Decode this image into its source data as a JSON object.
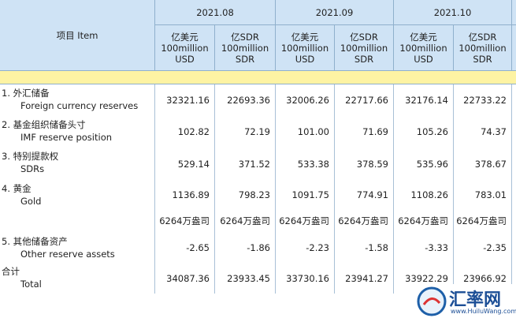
{
  "header": {
    "item": "项目 Item",
    "periods": [
      "2021.08",
      "2021.09",
      "2021.10"
    ],
    "units": [
      {
        "cn": "亿美元",
        "en": "100million",
        "unit": "USD"
      },
      {
        "cn": "亿SDR",
        "en": "100million",
        "unit": "SDR"
      },
      {
        "cn": "亿美元",
        "en": "100million",
        "unit": "USD"
      },
      {
        "cn": "亿SDR",
        "en": "100million",
        "unit": "SDR"
      },
      {
        "cn": "亿美元",
        "en": "100million",
        "unit": "USD"
      },
      {
        "cn": "亿SDR",
        "en": "100million",
        "unit": "SDR"
      }
    ]
  },
  "table": {
    "rows": [
      {
        "cn": "1. 外汇储备",
        "en": "Foreign currency reserves",
        "values": [
          "32321.16",
          "22693.36",
          "32006.26",
          "22717.66",
          "32176.14",
          "22733.22"
        ]
      },
      {
        "cn": "2. 基金组织储备头寸",
        "en": "IMF reserve position",
        "values": [
          "102.82",
          "72.19",
          "101.00",
          "71.69",
          "105.26",
          "74.37"
        ]
      },
      {
        "cn": "3. 特别提款权",
        "en": "SDRs",
        "values": [
          "529.14",
          "371.52",
          "533.38",
          "378.59",
          "535.96",
          "378.67"
        ]
      },
      {
        "cn": "4. 黄金",
        "en": "Gold",
        "values": [
          "1136.89",
          "798.23",
          "1091.75",
          "774.91",
          "1108.26",
          "783.01"
        ]
      },
      {
        "cn": null,
        "en": null,
        "values": [
          "6264万盎司",
          "6264万盎司",
          "6264万盎司",
          "6264万盎司",
          "6264万盎司",
          "6264万盎司"
        ]
      },
      {
        "cn": "5. 其他储备资产",
        "en": "Other reserve assets",
        "values": [
          "-2.65",
          "-1.86",
          "-2.23",
          "-1.58",
          "-3.33",
          "-2.35"
        ]
      },
      {
        "cn": "合计",
        "en": "Total",
        "values": [
          "34087.36",
          "23933.45",
          "33730.16",
          "23941.27",
          "33922.29",
          "23966.92"
        ]
      }
    ]
  },
  "watermark": {
    "title": "汇率网",
    "url": "www.HuiluWang.com"
  }
}
